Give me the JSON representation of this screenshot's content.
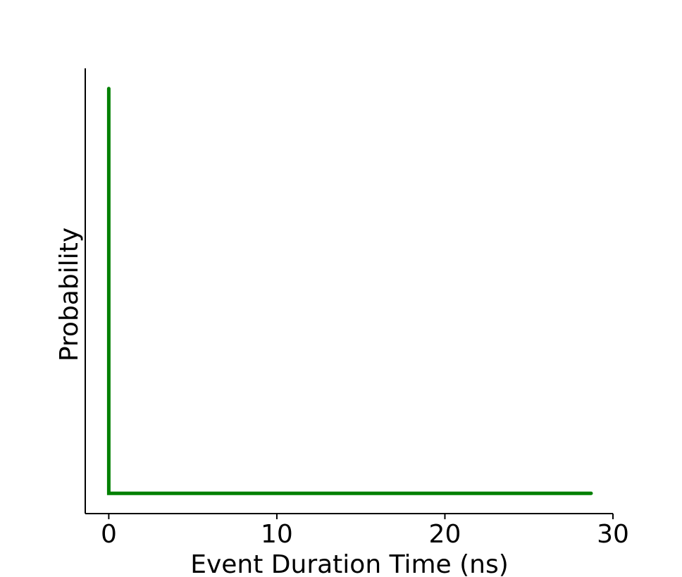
{
  "chart_data": {
    "type": "line",
    "title": "",
    "xlabel": "Event Duration Time (ns)",
    "ylabel": "Probability",
    "xlim": [
      -1.4,
      30.0
    ],
    "ylim": [
      -0.05,
      1.05
    ],
    "xticks": [
      0,
      10,
      20,
      30
    ],
    "xtick_labels": [
      "0",
      "10",
      "20",
      "30"
    ],
    "yticks": [],
    "grid": false,
    "legend": "none",
    "spines": {
      "left": true,
      "bottom": true,
      "top": false,
      "right": false
    },
    "series": [
      {
        "color": "#008000",
        "x": [
          0,
          0,
          28.7
        ],
        "y": [
          1.0,
          0.0,
          0.0
        ]
      }
    ]
  }
}
